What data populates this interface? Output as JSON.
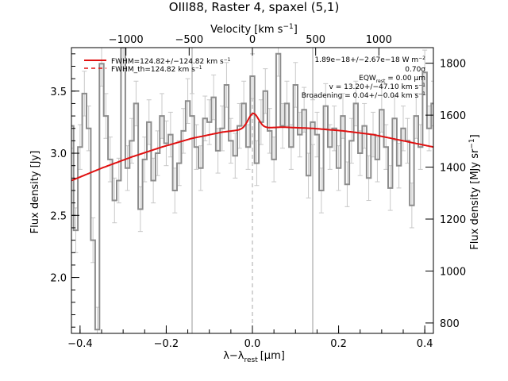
{
  "chart_data": {
    "type": "line",
    "title": "OIII88, Raster 4, spaxel (5,1)",
    "xlabel_main": "λ−λ",
    "xlabel_sub": "rest",
    "xlabel_unit": "[μm]",
    "top_axis_label": "Velocity [km s",
    "top_axis_sup": "−1",
    "top_axis_close": "]",
    "ylabel": "Flux density [Jy]",
    "right_ylabel": "Flux density [MJy sr",
    "right_ylabel_sup": "−1",
    "right_ylabel_close": "]",
    "xlim": [
      -0.42,
      0.42
    ],
    "ylim": [
      1.55,
      3.85
    ],
    "right_ylim": [
      760,
      1860
    ],
    "x_ticks": [
      -0.4,
      -0.2,
      0.0,
      0.2,
      0.4
    ],
    "x_tick_labels": [
      "−0.4",
      "−0.2",
      "0.0",
      "0.2",
      "0.4"
    ],
    "y_ticks": [
      2.0,
      2.5,
      3.0,
      3.5
    ],
    "y_tick_labels": [
      "2.0",
      "2.5",
      "3.0",
      "3.5"
    ],
    "right_ticks": [
      800,
      1000,
      1200,
      1400,
      1600,
      1800
    ],
    "right_tick_labels": [
      "800",
      "1000",
      "1200",
      "1400",
      "1600",
      "1800"
    ],
    "velocity_ticks": [
      -1000,
      -500,
      0,
      500,
      1000
    ],
    "velocity_tick_labels": [
      "−1000",
      "−500",
      "0",
      "500",
      "1000"
    ],
    "velocity_x_positions": [
      -0.2935,
      -0.1468,
      0.0,
      0.1468,
      0.2935
    ],
    "vertical_lines": [
      -0.14,
      0.14
    ],
    "center_line": 0.0,
    "legend": [
      {
        "label": "FWHM=124.82+/−124.82 km s",
        "sup": "−1",
        "style": "solid"
      },
      {
        "label": "FWHM_th=124.82 km s",
        "sup": "−1",
        "style": "dashed"
      }
    ],
    "annotations": [
      "1.89e−18+/−2.67e−18 W m",
      "0.70σ",
      "EQW",
      "= 0.00 μm",
      "v = 13.20+/−47.10 km s",
      "Broadening = 0.04+/−0.04 km s"
    ],
    "annotation_sup": "−2",
    "annotation_sub": "rest",
    "annotation_v_sup": "−1",
    "spectrum": {
      "x": [
        -0.42,
        -0.41,
        -0.4,
        -0.39,
        -0.38,
        -0.37,
        -0.36,
        -0.35,
        -0.34,
        -0.33,
        -0.32,
        -0.31,
        -0.3,
        -0.29,
        -0.28,
        -0.27,
        -0.26,
        -0.25,
        -0.24,
        -0.23,
        -0.22,
        -0.21,
        -0.2,
        -0.19,
        -0.18,
        -0.17,
        -0.16,
        -0.15,
        -0.14,
        -0.13,
        -0.12,
        -0.11,
        -0.1,
        -0.09,
        -0.08,
        -0.07,
        -0.06,
        -0.05,
        -0.04,
        -0.03,
        -0.02,
        -0.01,
        0.0,
        0.01,
        0.02,
        0.03,
        0.04,
        0.05,
        0.06,
        0.07,
        0.08,
        0.09,
        0.1,
        0.11,
        0.12,
        0.13,
        0.14,
        0.15,
        0.16,
        0.17,
        0.18,
        0.19,
        0.2,
        0.21,
        0.22,
        0.23,
        0.24,
        0.25,
        0.26,
        0.27,
        0.28,
        0.29,
        0.3,
        0.31,
        0.32,
        0.33,
        0.34,
        0.35,
        0.36,
        0.37,
        0.38,
        0.39,
        0.4,
        0.41,
        0.42
      ],
      "y": [
        3.22,
        2.38,
        3.05,
        3.48,
        3.2,
        2.3,
        1.58,
        3.72,
        3.3,
        2.95,
        2.62,
        2.78,
        3.85,
        2.88,
        3.1,
        3.4,
        2.55,
        2.95,
        3.25,
        2.78,
        3.0,
        3.3,
        3.08,
        3.15,
        2.7,
        2.92,
        3.18,
        3.42,
        3.3,
        3.05,
        2.88,
        3.28,
        3.25,
        3.45,
        3.02,
        3.2,
        3.55,
        3.1,
        2.98,
        3.22,
        3.4,
        3.05,
        3.62,
        2.92,
        3.25,
        3.5,
        3.18,
        2.95,
        3.8,
        3.22,
        3.4,
        3.05,
        3.55,
        3.15,
        3.35,
        2.82,
        3.25,
        3.15,
        2.7,
        3.38,
        3.05,
        3.2,
        2.88,
        3.3,
        2.75,
        3.1,
        3.4,
        3.0,
        3.22,
        2.8,
        3.15,
        2.95,
        3.35,
        3.05,
        2.72,
        3.28,
        2.9,
        3.2,
        3.1,
        2.58,
        3.3,
        3.05,
        3.65,
        3.2,
        3.4
      ],
      "err": [
        0.18
      ]
    },
    "model_continuum": {
      "x": [
        -0.42,
        -0.35,
        -0.28,
        -0.21,
        -0.14,
        -0.07,
        0.0,
        0.07,
        0.14,
        0.21,
        0.28,
        0.35,
        0.42
      ],
      "y": [
        2.78,
        2.88,
        2.97,
        3.05,
        3.12,
        3.17,
        3.2,
        3.21,
        3.2,
        3.18,
        3.15,
        3.1,
        3.05
      ]
    },
    "model_line": {
      "center": 0.002,
      "sigma": 0.012,
      "amplitude": 0.12
    }
  }
}
